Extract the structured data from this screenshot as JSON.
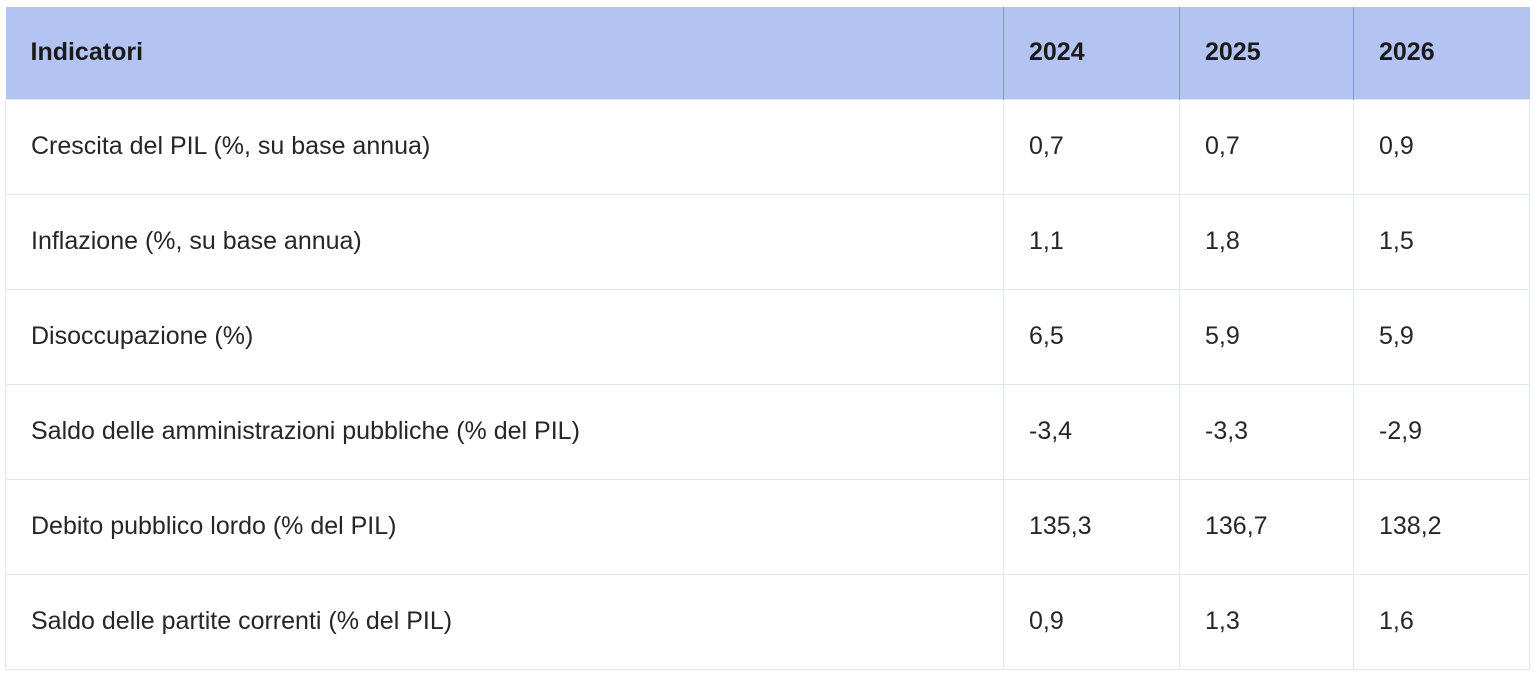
{
  "table": {
    "headers": [
      "Indicatori",
      "2024",
      "2025",
      "2026"
    ],
    "rows": [
      {
        "label": "Crescita del PIL (%, su base annua)",
        "values": [
          "0,7",
          "0,7",
          "0,9"
        ]
      },
      {
        "label": "Inflazione (%, su base annua)",
        "values": [
          "1,1",
          "1,8",
          "1,5"
        ]
      },
      {
        "label": "Disoccupazione (%)",
        "values": [
          "6,5",
          "5,9",
          "5,9"
        ]
      },
      {
        "label": "Saldo delle amministrazioni pubbliche (% del PIL)",
        "values": [
          "-3,4",
          "-3,3",
          "-2,9"
        ]
      },
      {
        "label": "Debito pubblico lordo (% del PIL)",
        "values": [
          "135,3",
          "136,7",
          "138,2"
        ]
      },
      {
        "label": "Saldo delle partite correnti (% del PIL)",
        "values": [
          "0,9",
          "1,3",
          "1,6"
        ]
      }
    ]
  },
  "colors": {
    "header_background": "#b3c4f3",
    "grid_line": "#e1e6f3"
  }
}
